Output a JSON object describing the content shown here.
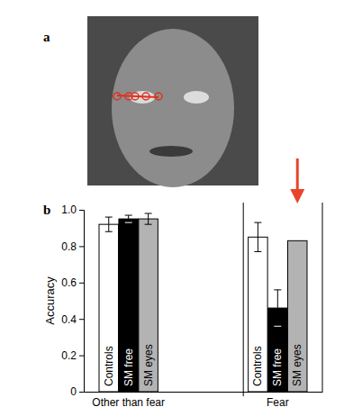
{
  "panel_labels": [
    "a",
    "b"
  ],
  "chart_data": {
    "type": "bar",
    "y_label": "Accuracy",
    "categories": [
      "Other than fear",
      "Fear"
    ],
    "series": [
      {
        "name": "Controls",
        "color": "#ffffff",
        "values": [
          0.92,
          0.85
        ],
        "error": [
          0.04,
          0.08
        ]
      },
      {
        "name": "SM free",
        "color": "#000000",
        "values": [
          0.95,
          0.46
        ],
        "error": [
          0.02,
          0.1
        ]
      },
      {
        "name": "SM eyes",
        "color": "#b3b3b3",
        "values": [
          0.95,
          0.83
        ],
        "error": [
          0.03,
          null
        ]
      }
    ],
    "ylim": [
      0,
      1.0
    ],
    "yticks": [
      0,
      0.2,
      0.4,
      0.6,
      0.8,
      {
        "value": 1.0,
        "label": "1.0"
      }
    ]
  }
}
